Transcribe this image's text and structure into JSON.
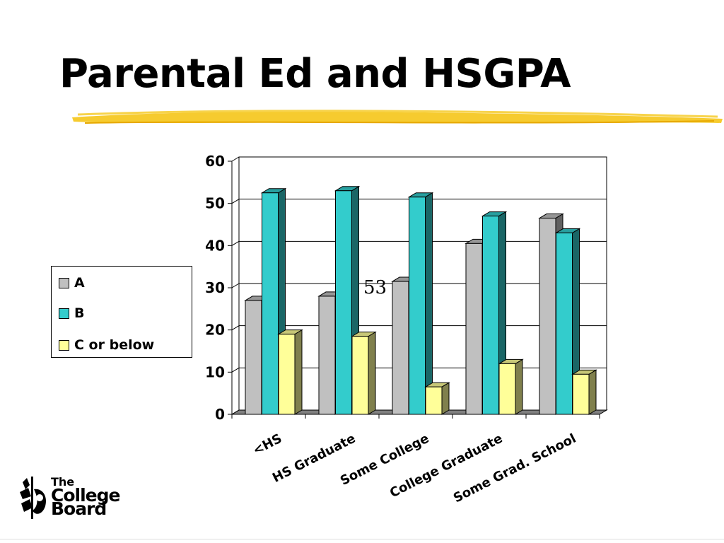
{
  "slide": {
    "title": "Parental Ed and HSGPA",
    "underline_color": "#f5c518",
    "annotation": "53"
  },
  "logo": {
    "line1": "The",
    "line2": "College",
    "line3": "Board"
  },
  "chart_data": {
    "type": "bar",
    "title": "",
    "xlabel": "",
    "ylabel": "",
    "ylim": [
      0,
      60
    ],
    "yticks": [
      0,
      10,
      20,
      30,
      40,
      50,
      60
    ],
    "grid": true,
    "legend_position": "left",
    "categories": [
      "<HS",
      "HS Graduate",
      "Some College",
      "College Graduate",
      "Some Grad. School"
    ],
    "series": [
      {
        "name": "A",
        "color": "#c0c0c0",
        "values": [
          27,
          28,
          31.5,
          40.5,
          46.5
        ]
      },
      {
        "name": "B",
        "color": "#33cccc",
        "values": [
          52.5,
          53,
          51.5,
          47,
          43
        ]
      },
      {
        "name": "C or below",
        "color": "#ffff99",
        "values": [
          19,
          18.5,
          6.5,
          12,
          9.5
        ]
      }
    ]
  }
}
